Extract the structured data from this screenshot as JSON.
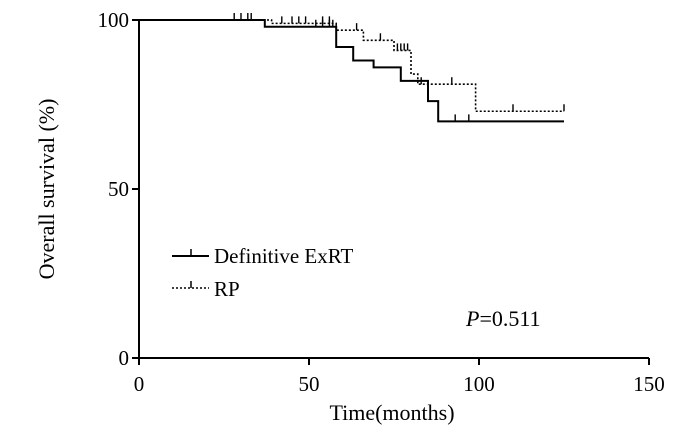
{
  "chart_data": {
    "type": "line",
    "xlabel": "Time(months)",
    "ylabel": "Overall survival (%)",
    "xlim": [
      0,
      150
    ],
    "ylim": [
      0,
      100
    ],
    "xticks": [
      "0",
      "50",
      "100",
      "150"
    ],
    "yticks": [
      "0",
      "50",
      "100"
    ],
    "legend_position": "lower-left",
    "grid": false,
    "annotation": {
      "p_label": "P",
      "p_value": "=0.511"
    },
    "series": [
      {
        "name": "Definitive ExRT",
        "style": "solid",
        "color": "#000000",
        "steps": [
          [
            0,
            100
          ],
          [
            37,
            98
          ],
          [
            58,
            92
          ],
          [
            63,
            88
          ],
          [
            69,
            86
          ],
          [
            77,
            82
          ],
          [
            85,
            76
          ],
          [
            88,
            70
          ],
          [
            125,
            70
          ]
        ],
        "censor": [
          30,
          32,
          33,
          52,
          54,
          56,
          57,
          93,
          97
        ]
      },
      {
        "name": "RP",
        "style": "dotted",
        "color": "#000000",
        "steps": [
          [
            0,
            100
          ],
          [
            39,
            99
          ],
          [
            58,
            97
          ],
          [
            66,
            94
          ],
          [
            75,
            91
          ],
          [
            80,
            84
          ],
          [
            82,
            81
          ],
          [
            99,
            73
          ],
          [
            125,
            73
          ]
        ],
        "censor": [
          28,
          42,
          45,
          47,
          49,
          54,
          56,
          58,
          64,
          71,
          76,
          77,
          78,
          79,
          83,
          92,
          110,
          125
        ]
      }
    ]
  }
}
